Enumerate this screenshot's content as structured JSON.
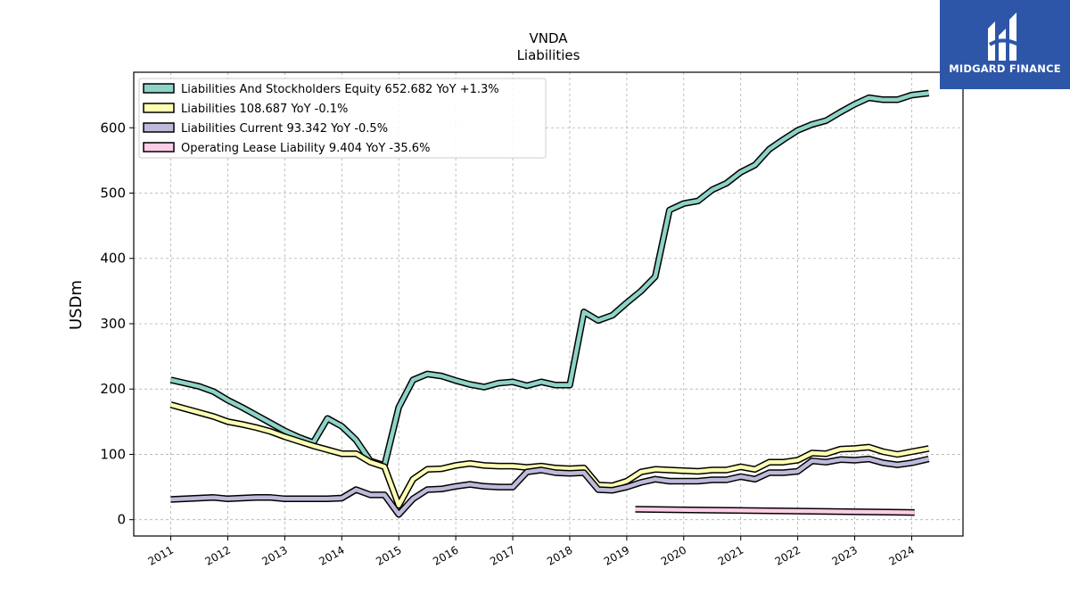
{
  "brand": {
    "name": "MIDGARD FINANCE"
  },
  "chart_data": {
    "type": "line",
    "title": "VNDA",
    "subtitle": "Liabilities",
    "ylabel": "USDm",
    "ylim": [
      -25,
      685
    ],
    "xlim": [
      2010.35,
      2024.9
    ],
    "yticks": [
      0,
      100,
      200,
      300,
      400,
      500,
      600
    ],
    "xticks": [
      "2011",
      "2012",
      "2013",
      "2014",
      "2015",
      "2016",
      "2017",
      "2018",
      "2019",
      "2020",
      "2021",
      "2022",
      "2023",
      "2024"
    ],
    "grid": true,
    "legend_position": "upper-left",
    "series": [
      {
        "name": "Liabilities And Stockholders Equity",
        "legend_label": "Liabilities And Stockholders Equity  652.682 YoY +1.3%",
        "color": "#8dd3c7",
        "x": [
          2011.0,
          2011.25,
          2011.5,
          2011.75,
          2012.0,
          2012.25,
          2012.5,
          2012.75,
          2013.0,
          2013.25,
          2013.5,
          2013.75,
          2014.0,
          2014.25,
          2014.5,
          2014.75,
          2015.0,
          2015.25,
          2015.5,
          2015.75,
          2016.0,
          2016.25,
          2016.5,
          2016.75,
          2017.0,
          2017.25,
          2017.5,
          2017.75,
          2018.0,
          2018.25,
          2018.5,
          2018.75,
          2019.0,
          2019.25,
          2019.5,
          2019.75,
          2020.0,
          2020.25,
          2020.5,
          2020.75,
          2021.0,
          2021.25,
          2021.5,
          2021.75,
          2022.0,
          2022.25,
          2022.5,
          2022.75,
          2023.0,
          2023.25,
          2023.5,
          2023.75,
          2024.0,
          2024.3
        ],
        "values": [
          214,
          209,
          204,
          196,
          183,
          172,
          160,
          148,
          136,
          126,
          118,
          155,
          143,
          122,
          90,
          83,
          172,
          214,
          223,
          220,
          213,
          207,
          203,
          209,
          211,
          205,
          211,
          206,
          206,
          318,
          305,
          313,
          332,
          350,
          372,
          474,
          484,
          488,
          505,
          515,
          532,
          543,
          567,
          582,
          596,
          605,
          611,
          624,
          636,
          646,
          643,
          643,
          650,
          653
        ]
      },
      {
        "name": "Liabilities",
        "legend_label": "Liabilities  108.687 YoY -0.1%",
        "color": "#ffffb3",
        "x": [
          2011.0,
          2011.25,
          2011.5,
          2011.75,
          2012.0,
          2012.25,
          2012.5,
          2012.75,
          2013.0,
          2013.25,
          2013.5,
          2013.75,
          2014.0,
          2014.25,
          2014.5,
          2014.75,
          2015.0,
          2015.25,
          2015.5,
          2015.75,
          2016.0,
          2016.25,
          2016.5,
          2016.75,
          2017.0,
          2017.25,
          2017.5,
          2017.75,
          2018.0,
          2018.25,
          2018.5,
          2018.75,
          2019.0,
          2019.25,
          2019.5,
          2019.75,
          2020.0,
          2020.25,
          2020.5,
          2020.75,
          2021.0,
          2021.25,
          2021.5,
          2021.75,
          2022.0,
          2022.25,
          2022.5,
          2022.75,
          2023.0,
          2023.25,
          2023.5,
          2023.75,
          2024.0,
          2024.3
        ],
        "values": [
          176,
          170,
          164,
          158,
          150,
          146,
          141,
          135,
          127,
          120,
          113,
          107,
          101,
          101,
          88,
          81,
          22,
          62,
          77,
          78,
          83,
          86,
          83,
          82,
          82,
          80,
          82,
          79,
          78,
          79,
          53,
          52,
          59,
          73,
          77,
          76,
          75,
          74,
          76,
          76,
          81,
          77,
          88,
          88,
          91,
          102,
          101,
          108,
          109,
          111,
          104,
          100,
          104,
          109
        ]
      },
      {
        "name": "Liabilities Current",
        "legend_label": "Liabilities Current  93.342 YoY -0.5%",
        "color": "#bebada",
        "x": [
          2011.0,
          2011.25,
          2011.5,
          2011.75,
          2012.0,
          2012.25,
          2012.5,
          2012.75,
          2013.0,
          2013.25,
          2013.5,
          2013.75,
          2014.0,
          2014.25,
          2014.5,
          2014.75,
          2015.0,
          2015.25,
          2015.5,
          2015.75,
          2016.0,
          2016.25,
          2016.5,
          2016.75,
          2017.0,
          2017.25,
          2017.5,
          2017.75,
          2018.0,
          2018.25,
          2018.5,
          2018.75,
          2019.0,
          2019.25,
          2019.5,
          2019.75,
          2020.0,
          2020.25,
          2020.5,
          2020.75,
          2021.0,
          2021.25,
          2021.5,
          2021.75,
          2022.0,
          2022.25,
          2022.5,
          2022.75,
          2023.0,
          2023.25,
          2023.5,
          2023.75,
          2024.0,
          2024.3
        ],
        "values": [
          31,
          32,
          33,
          34,
          32,
          33,
          34,
          34,
          32,
          32,
          32,
          32,
          33,
          46,
          38,
          38,
          8,
          32,
          46,
          47,
          51,
          54,
          51,
          50,
          50,
          73,
          76,
          72,
          71,
          72,
          46,
          45,
          50,
          57,
          62,
          59,
          59,
          59,
          61,
          61,
          66,
          62,
          72,
          72,
          74,
          90,
          88,
          92,
          91,
          93,
          87,
          84,
          87,
          93
        ]
      },
      {
        "name": "Operating Lease Liability",
        "legend_label": "Operating Lease Liability  9.404 YoY -35.6%",
        "color": "#fccde5",
        "x": [
          2019.15,
          2024.05
        ],
        "values": [
          16,
          11
        ]
      }
    ]
  }
}
